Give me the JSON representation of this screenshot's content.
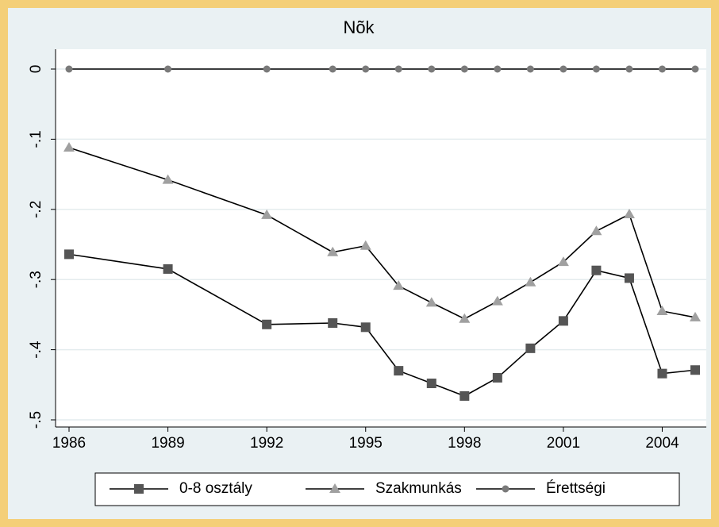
{
  "chart_data": {
    "type": "line",
    "title": "Nõk",
    "x": [
      1986,
      1989,
      1992,
      1994,
      1995,
      1996,
      1997,
      1998,
      1999,
      2000,
      2001,
      2002,
      2003,
      2004,
      2005
    ],
    "series": [
      {
        "name": "0-8 osztály",
        "color": "#555555",
        "marker": "square",
        "values": [
          -0.264,
          -0.285,
          -0.364,
          -0.362,
          -0.368,
          -0.43,
          -0.448,
          -0.466,
          -0.44,
          -0.398,
          -0.359,
          -0.287,
          -0.298,
          -0.434,
          -0.429
        ]
      },
      {
        "name": "Szakmunkás",
        "color": "#a0a0a0",
        "marker": "triangle",
        "values": [
          -0.112,
          -0.158,
          -0.208,
          -0.261,
          -0.252,
          -0.309,
          -0.333,
          -0.356,
          -0.331,
          -0.304,
          -0.275,
          -0.231,
          -0.207,
          -0.345,
          -0.354
        ]
      },
      {
        "name": "Érettségi",
        "color": "#7a7a7a",
        "marker": "circle",
        "values": [
          0,
          0,
          0,
          0,
          0,
          0,
          0,
          0,
          0,
          0,
          0,
          0,
          0,
          0,
          0
        ]
      }
    ],
    "xlim": [
      1986,
      2005
    ],
    "xticks": [
      1986,
      1989,
      1992,
      1995,
      1998,
      2001,
      2004
    ],
    "ylim": [
      -0.5,
      0
    ],
    "yticks": [
      {
        "value": -0.5,
        "label": "-.5"
      },
      {
        "value": -0.4,
        "label": "-.4"
      },
      {
        "value": -0.3,
        "label": "-.3"
      },
      {
        "value": -0.2,
        "label": "-.2"
      },
      {
        "value": -0.1,
        "label": "-.1"
      },
      0
    ],
    "grid": true,
    "legend": "bottom"
  }
}
